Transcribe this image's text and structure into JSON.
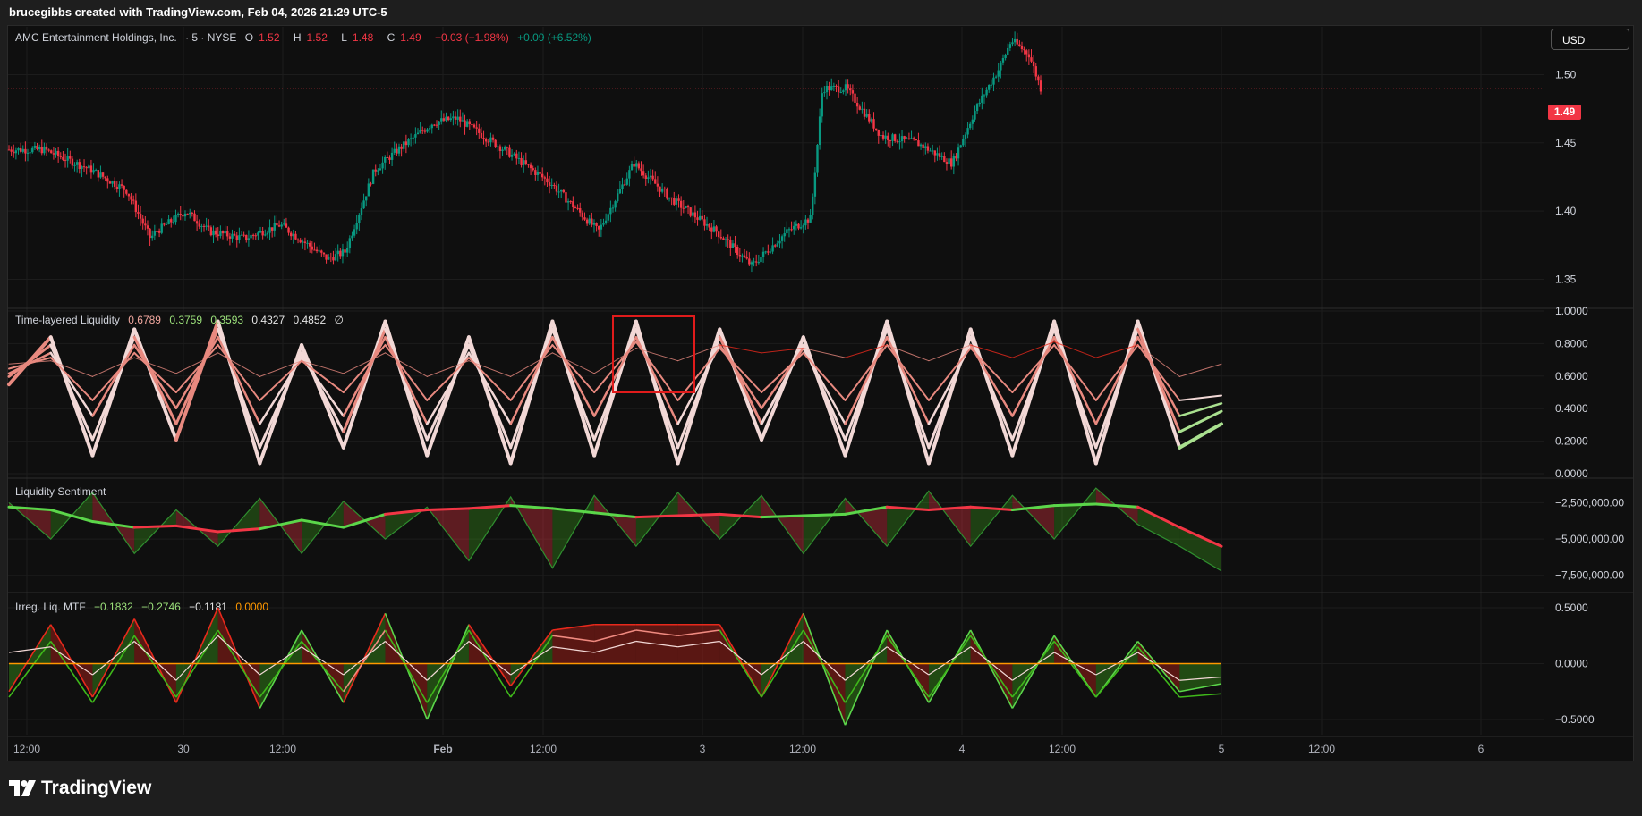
{
  "header": {
    "attribution": "brucegibbs created with TradingView.com, Feb 04, 2026 21:29 UTC-5"
  },
  "symbol_bar": {
    "name": "AMC Entertainment Holdings, Inc.",
    "interval": "· 5 · NYSE",
    "o_label": "O",
    "o_value": "1.52",
    "h_label": "H",
    "h_value": "1.52",
    "l_label": "L",
    "l_value": "1.48",
    "c_label": "C",
    "c_value": "1.49",
    "change": "−0.03 (−1.98%)",
    "ext_change": "+0.09 (+6.52%)"
  },
  "currency_button": "USD",
  "last_price_tag": "1.49",
  "indicators": {
    "tll": {
      "name": "Time-layered Liquidity",
      "v1": "0.6789",
      "v2": "0.3759",
      "v3": "0.3593",
      "v4": "0.4327",
      "v5": "0.4852",
      "v6": "∅"
    },
    "sentiment": {
      "name": "Liquidity Sentiment"
    },
    "irreg": {
      "name": "Irreg. Liq. MTF",
      "v1": "−0.1832",
      "v2": "−0.2746",
      "v3": "−0.1181",
      "v4": "0.0000"
    }
  },
  "colors": {
    "up": "#089981",
    "down": "#f23645",
    "bright_green": "#4cd41e",
    "bright_red": "#e8291c",
    "pale": "#f2d8d6",
    "background": "#0f0f0f",
    "page": "#1e1e1e"
  },
  "chart_data": [
    {
      "type": "candlestick",
      "title": "AMC Entertainment Holdings, Inc. · 5 · NYSE",
      "ylim": [
        1.33,
        1.535
      ],
      "yticks": [
        "1.50",
        "1.45",
        "1.40",
        "1.35"
      ],
      "last_price": 1.49,
      "x_ticks": [
        "12:00",
        "30",
        "12:00",
        "Feb",
        "12:00",
        "3",
        "12:00",
        "4",
        "12:00",
        "5",
        "12:00",
        "6"
      ],
      "close_path": [
        [
          0,
          1.445
        ],
        [
          0.03,
          1.445
        ],
        [
          0.07,
          1.43
        ],
        [
          0.1,
          1.415
        ],
        [
          0.12,
          1.38
        ],
        [
          0.125,
          1.385
        ],
        [
          0.15,
          1.4
        ],
        [
          0.17,
          1.385
        ],
        [
          0.2,
          1.38
        ],
        [
          0.23,
          1.39
        ],
        [
          0.27,
          1.365
        ],
        [
          0.285,
          1.37
        ],
        [
          0.31,
          1.43
        ],
        [
          0.33,
          1.445
        ],
        [
          0.36,
          1.465
        ],
        [
          0.38,
          1.468
        ],
        [
          0.42,
          1.445
        ],
        [
          0.46,
          1.42
        ],
        [
          0.5,
          1.385
        ],
        [
          0.53,
          1.435
        ],
        [
          0.56,
          1.41
        ],
        [
          0.6,
          1.385
        ],
        [
          0.63,
          1.36
        ],
        [
          0.66,
          1.385
        ],
        [
          0.68,
          1.395
        ],
        [
          0.69,
          1.49
        ],
        [
          0.71,
          1.49
        ],
        [
          0.74,
          1.455
        ],
        [
          0.77,
          1.45
        ],
        [
          0.8,
          1.435
        ],
        [
          0.82,
          1.475
        ],
        [
          0.84,
          1.505
        ],
        [
          0.85,
          1.525
        ],
        [
          0.865,
          1.515
        ],
        [
          0.875,
          1.49
        ]
      ]
    },
    {
      "type": "line",
      "title": "Time-layered Liquidity",
      "ylim": [
        0.0,
        1.0
      ],
      "yticks": [
        "1.0000",
        "0.8000",
        "0.6000",
        "0.4000",
        "0.2000",
        "0.0000"
      ],
      "series": [
        {
          "values": [
            0.55,
            0.85,
            0.1,
            0.9,
            0.2,
            0.95,
            0.05,
            0.8,
            0.15,
            0.95,
            0.1,
            0.85,
            0.05,
            0.95,
            0.1,
            0.95,
            0.05,
            0.9,
            0.2,
            0.85,
            0.1,
            0.95,
            0.05,
            0.9,
            0.1,
            0.95,
            0.05,
            0.95,
            0.15,
            0.3
          ]
        },
        {
          "values": [
            0.6,
            0.8,
            0.2,
            0.85,
            0.3,
            0.9,
            0.15,
            0.75,
            0.25,
            0.9,
            0.2,
            0.8,
            0.15,
            0.9,
            0.2,
            0.9,
            0.15,
            0.85,
            0.3,
            0.8,
            0.2,
            0.9,
            0.15,
            0.85,
            0.2,
            0.9,
            0.15,
            0.9,
            0.25,
            0.38
          ]
        },
        {
          "values": [
            0.62,
            0.75,
            0.35,
            0.8,
            0.4,
            0.85,
            0.3,
            0.72,
            0.35,
            0.85,
            0.3,
            0.75,
            0.3,
            0.85,
            0.35,
            0.85,
            0.3,
            0.8,
            0.4,
            0.78,
            0.3,
            0.85,
            0.3,
            0.8,
            0.35,
            0.85,
            0.3,
            0.85,
            0.35,
            0.43
          ]
        },
        {
          "values": [
            0.65,
            0.72,
            0.45,
            0.75,
            0.5,
            0.8,
            0.45,
            0.7,
            0.5,
            0.8,
            0.45,
            0.72,
            0.45,
            0.8,
            0.5,
            0.82,
            0.45,
            0.78,
            0.5,
            0.75,
            0.45,
            0.8,
            0.45,
            0.78,
            0.5,
            0.8,
            0.45,
            0.8,
            0.45,
            0.48
          ]
        },
        {
          "values": [
            0.68,
            0.7,
            0.6,
            0.72,
            0.62,
            0.75,
            0.6,
            0.7,
            0.62,
            0.75,
            0.6,
            0.7,
            0.6,
            0.75,
            0.62,
            0.78,
            0.7,
            0.8,
            0.75,
            0.78,
            0.72,
            0.8,
            0.7,
            0.8,
            0.72,
            0.82,
            0.72,
            0.8,
            0.6,
            0.68
          ]
        }
      ]
    },
    {
      "type": "area",
      "title": "Liquidity Sentiment",
      "ylim": [
        -8500000,
        -1000000
      ],
      "yticks": [
        "−2,500,000.00",
        "−5,000,000.00",
        "−7,500,000.00"
      ],
      "series": [
        {
          "values": [
            -2800000,
            -3000000,
            -3800000,
            -4200000,
            -4100000,
            -4500000,
            -4300000,
            -3700000,
            -4200000,
            -3300000,
            -3000000,
            -2900000,
            -2700000,
            -2900000,
            -3200000,
            -3500000,
            -3400000,
            -3300000,
            -3500000,
            -3400000,
            -3300000,
            -2800000,
            -3000000,
            -2800000,
            -3000000,
            -2700000,
            -2600000,
            -2800000,
            -4200000,
            -5500000
          ]
        },
        {
          "values": [
            -2500000,
            -5000000,
            -1800000,
            -6000000,
            -3000000,
            -5500000,
            -2200000,
            -6000000,
            -2400000,
            -5000000,
            -2800000,
            -6500000,
            -2100000,
            -7000000,
            -2000000,
            -5500000,
            -1800000,
            -5000000,
            -2000000,
            -6000000,
            -2200000,
            -5500000,
            -1700000,
            -5500000,
            -2000000,
            -5000000,
            -1500000,
            -4000000,
            -5500000,
            -7200000
          ]
        }
      ]
    },
    {
      "type": "area",
      "title": "Irreg. Liq. MTF",
      "ylim": [
        -0.62,
        0.62
      ],
      "yticks": [
        "0.5000",
        "0.0000",
        "−0.5000"
      ],
      "series": [
        {
          "values": [
            -0.25,
            0.35,
            -0.3,
            0.4,
            -0.35,
            0.5,
            -0.4,
            0.3,
            -0.35,
            0.45,
            -0.5,
            0.35,
            -0.2,
            0.3,
            0.35,
            0.35,
            0.35,
            0.35,
            -0.3,
            0.45,
            -0.55,
            0.3,
            -0.35,
            0.3,
            -0.4,
            0.25,
            -0.3,
            0.2,
            -0.25,
            -0.18
          ]
        },
        {
          "values": [
            -0.3,
            0.2,
            -0.35,
            0.25,
            -0.3,
            0.3,
            -0.3,
            0.2,
            -0.25,
            0.3,
            -0.35,
            0.3,
            -0.3,
            0.25,
            0.2,
            0.3,
            0.25,
            0.3,
            -0.3,
            0.3,
            -0.35,
            0.25,
            -0.3,
            0.25,
            -0.3,
            0.2,
            -0.3,
            0.15,
            -0.3,
            -0.27
          ]
        },
        {
          "values": [
            0.1,
            0.15,
            -0.1,
            0.2,
            -0.15,
            0.25,
            -0.1,
            0.15,
            -0.1,
            0.2,
            -0.15,
            0.2,
            -0.1,
            0.15,
            0.1,
            0.2,
            0.15,
            0.2,
            -0.1,
            0.2,
            -0.15,
            0.15,
            -0.1,
            0.15,
            -0.15,
            0.1,
            -0.1,
            0.1,
            -0.15,
            -0.12
          ]
        },
        {
          "values": [
            0,
            0,
            0,
            0,
            0,
            0,
            0,
            0,
            0,
            0,
            0,
            0,
            0,
            0,
            0,
            0,
            0,
            0,
            0,
            0,
            0,
            0,
            0,
            0,
            0,
            0,
            0,
            0,
            0,
            0
          ]
        }
      ]
    }
  ],
  "brand": {
    "logo_text": "TradingView"
  }
}
